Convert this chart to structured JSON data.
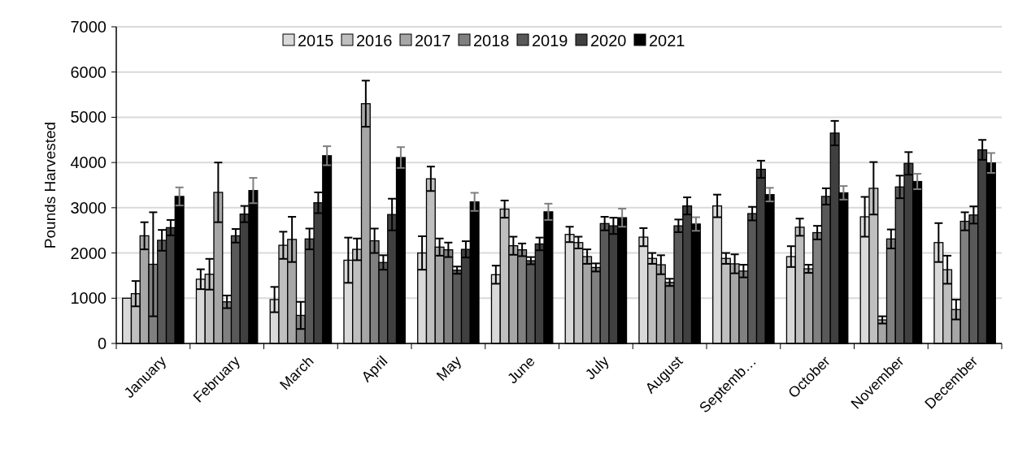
{
  "chart_data": {
    "type": "bar",
    "ylabel": "Pounds Harvested",
    "categories": [
      "January",
      "February",
      "March",
      "April",
      "May",
      "June",
      "July",
      "August",
      "Septemb…",
      "October",
      "November",
      "December"
    ],
    "ylim": [
      0,
      7000
    ],
    "yticks": [
      0,
      1000,
      2000,
      3000,
      4000,
      5000,
      6000,
      7000
    ],
    "grid": "y",
    "legend": "top",
    "series": [
      {
        "name": "2015",
        "color": "#d9d9d9",
        "values": [
          1000,
          1420,
          970,
          1840,
          2000,
          1520,
          2410,
          2350,
          3040,
          1920,
          2800,
          2230
        ],
        "errors": [
          null,
          220,
          280,
          500,
          370,
          200,
          170,
          200,
          250,
          230,
          440,
          430
        ]
      },
      {
        "name": "2016",
        "color": "#bfbfbf",
        "values": [
          1100,
          1530,
          2170,
          2080,
          3640,
          2970,
          2230,
          1880,
          1880,
          2570,
          3430,
          1630
        ],
        "errors": [
          280,
          340,
          300,
          240,
          270,
          190,
          130,
          120,
          120,
          190,
          580,
          310
        ]
      },
      {
        "name": "2017",
        "color": "#a6a6a6",
        "values": [
          2380,
          3340,
          2300,
          5300,
          2130,
          2160,
          1920,
          1740,
          1760,
          1650,
          520,
          750
        ],
        "errors": [
          300,
          660,
          500,
          510,
          190,
          200,
          160,
          210,
          210,
          90,
          80,
          220
        ]
      },
      {
        "name": "2018",
        "color": "#808080",
        "values": [
          1750,
          920,
          620,
          2270,
          2070,
          2070,
          1680,
          1350,
          1600,
          2450,
          2310,
          2700
        ],
        "errors": [
          1150,
          140,
          300,
          270,
          160,
          140,
          90,
          80,
          140,
          150,
          210,
          200
        ]
      },
      {
        "name": "2019",
        "color": "#595959",
        "values": [
          2280,
          2380,
          2310,
          1790,
          1620,
          1830,
          2650,
          2600,
          2870,
          3250,
          3460,
          2840
        ],
        "errors": [
          230,
          150,
          230,
          160,
          80,
          80,
          150,
          140,
          150,
          180,
          250,
          190
        ]
      },
      {
        "name": "2020",
        "color": "#404040",
        "values": [
          2560,
          2860,
          3110,
          2850,
          2080,
          2200,
          2600,
          3040,
          3850,
          4650,
          3980,
          4280
        ],
        "errors": [
          170,
          180,
          230,
          350,
          180,
          140,
          180,
          190,
          190,
          270,
          250,
          220
        ]
      },
      {
        "name": "2021",
        "color": "#000000",
        "values": [
          3250,
          3380,
          4150,
          4110,
          3130,
          2910,
          2780,
          2640,
          3290,
          3330,
          3580,
          3990
        ],
        "errors": [
          200,
          280,
          210,
          230,
          200,
          180,
          200,
          150,
          150,
          150,
          170,
          220
        ]
      }
    ]
  }
}
